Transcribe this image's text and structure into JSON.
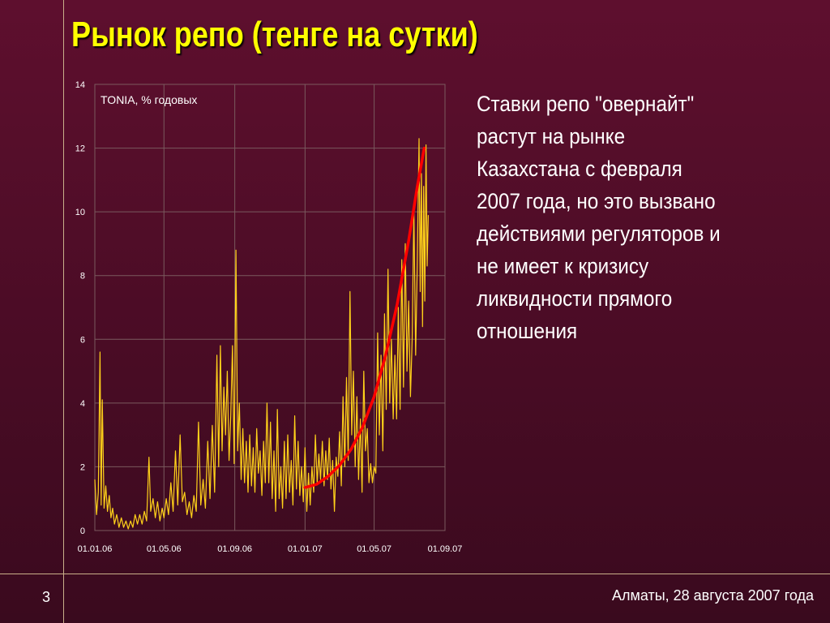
{
  "slide": {
    "title": "Рынок репо (тенге на сутки)",
    "body_lines": [
      "Ставки репо \"овернайт\"",
      "растут на рынке",
      "Казахстана с февраля",
      "2007 года, но это вызвано",
      "действиями регуляторов и",
      "не имеет к кризису",
      "ликвидности прямого",
      "отношения"
    ],
    "page_number": "3",
    "footer": "Алматы, 28 августа 2007 года"
  },
  "colors": {
    "background": "#5e0f2e",
    "title": "#ffff00",
    "series": "#ffd21a",
    "trend": "#ff0000",
    "grid": "#7a5a5e",
    "axis": "#c9b08a"
  },
  "chart_data": {
    "type": "line",
    "title": "",
    "series_label": "TONIA, % годовых",
    "ylim": [
      0,
      14
    ],
    "yticks": [
      "0",
      "2",
      "4",
      "6",
      "8",
      "10",
      "12",
      "14"
    ],
    "xticks": [
      "01.01.06",
      "01.05.06",
      "01.09.06",
      "01.01.07",
      "01.05.07",
      "01.09.07"
    ],
    "grid": true,
    "series": [
      {
        "name": "TONIA, % годовых",
        "points": [
          [
            "01.01.06",
            1.6
          ],
          [
            "04.01.06",
            0.5
          ],
          [
            "07.01.06",
            1.2
          ],
          [
            "10.01.06",
            5.6
          ],
          [
            "12.01.06",
            0.8
          ],
          [
            "14.01.06",
            4.1
          ],
          [
            "17.01.06",
            0.7
          ],
          [
            "20.01.06",
            1.4
          ],
          [
            "23.01.06",
            0.6
          ],
          [
            "26.01.06",
            1.1
          ],
          [
            "29.01.06",
            0.4
          ],
          [
            "01.02.06",
            0.7
          ],
          [
            "04.02.06",
            0.2
          ],
          [
            "08.02.06",
            0.5
          ],
          [
            "12.02.06",
            0.1
          ],
          [
            "16.02.06",
            0.4
          ],
          [
            "20.02.06",
            0.1
          ],
          [
            "24.02.06",
            0.3
          ],
          [
            "28.02.06",
            0.05
          ],
          [
            "04.03.06",
            0.3
          ],
          [
            "08.03.06",
            0.1
          ],
          [
            "12.03.06",
            0.5
          ],
          [
            "16.03.06",
            0.2
          ],
          [
            "20.03.06",
            0.5
          ],
          [
            "24.03.06",
            0.2
          ],
          [
            "28.03.06",
            0.6
          ],
          [
            "01.04.06",
            0.3
          ],
          [
            "05.04.06",
            2.3
          ],
          [
            "08.04.06",
            0.6
          ],
          [
            "12.04.06",
            1.0
          ],
          [
            "16.04.06",
            0.4
          ],
          [
            "20.04.06",
            0.9
          ],
          [
            "24.04.06",
            0.3
          ],
          [
            "28.04.06",
            0.7
          ],
          [
            "01.05.06",
            0.4
          ],
          [
            "05.05.06",
            1.0
          ],
          [
            "09.05.06",
            0.5
          ],
          [
            "13.05.06",
            1.5
          ],
          [
            "17.05.06",
            0.6
          ],
          [
            "21.05.06",
            2.5
          ],
          [
            "25.05.06",
            0.8
          ],
          [
            "29.05.06",
            3.0
          ],
          [
            "02.06.06",
            0.9
          ],
          [
            "06.06.06",
            1.2
          ],
          [
            "10.06.06",
            0.5
          ],
          [
            "14.06.06",
            0.9
          ],
          [
            "18.06.06",
            0.4
          ],
          [
            "22.06.06",
            1.1
          ],
          [
            "26.06.06",
            0.6
          ],
          [
            "30.06.06",
            3.4
          ],
          [
            "04.07.06",
            0.8
          ],
          [
            "08.07.06",
            1.6
          ],
          [
            "12.07.06",
            0.7
          ],
          [
            "16.07.06",
            2.8
          ],
          [
            "20.07.06",
            1.0
          ],
          [
            "24.07.06",
            3.3
          ],
          [
            "28.07.06",
            1.2
          ],
          [
            "01.08.06",
            5.5
          ],
          [
            "04.08.06",
            2.0
          ],
          [
            "07.08.06",
            5.8
          ],
          [
            "10.08.06",
            2.5
          ],
          [
            "13.08.06",
            4.5
          ],
          [
            "16.08.06",
            3.0
          ],
          [
            "19.08.06",
            5.0
          ],
          [
            "22.08.06",
            2.2
          ],
          [
            "25.08.06",
            3.6
          ],
          [
            "28.08.06",
            5.8
          ],
          [
            "31.08.06",
            2.1
          ],
          [
            "03.09.06",
            8.8
          ],
          [
            "06.09.06",
            2.5
          ],
          [
            "09.09.06",
            4.0
          ],
          [
            "12.09.06",
            1.6
          ],
          [
            "15.09.06",
            3.2
          ],
          [
            "18.09.06",
            1.5
          ],
          [
            "21.09.06",
            2.8
          ],
          [
            "24.09.06",
            1.2
          ],
          [
            "27.09.06",
            3.0
          ],
          [
            "30.09.06",
            1.4
          ],
          [
            "03.10.06",
            2.6
          ],
          [
            "06.10.06",
            1.2
          ],
          [
            "09.10.06",
            3.2
          ],
          [
            "12.10.06",
            1.8
          ],
          [
            "15.10.06",
            2.5
          ],
          [
            "18.10.06",
            1.1
          ],
          [
            "21.10.06",
            2.8
          ],
          [
            "24.10.06",
            1.5
          ],
          [
            "27.10.06",
            4.0
          ],
          [
            "30.10.06",
            1.5
          ],
          [
            "02.11.06",
            3.4
          ],
          [
            "05.11.06",
            1.0
          ],
          [
            "08.11.06",
            2.5
          ],
          [
            "11.11.06",
            0.6
          ],
          [
            "14.11.06",
            3.8
          ],
          [
            "17.11.06",
            1.0
          ],
          [
            "20.11.06",
            2.0
          ],
          [
            "23.11.06",
            0.7
          ],
          [
            "26.11.06",
            2.8
          ],
          [
            "29.11.06",
            1.0
          ],
          [
            "02.12.06",
            3.0
          ],
          [
            "05.12.06",
            1.2
          ],
          [
            "08.12.06",
            2.2
          ],
          [
            "11.12.06",
            0.8
          ],
          [
            "14.12.06",
            3.6
          ],
          [
            "17.12.06",
            1.3
          ],
          [
            "20.12.06",
            2.8
          ],
          [
            "23.12.06",
            1.1
          ],
          [
            "26.12.06",
            2.0
          ],
          [
            "29.12.06",
            0.9
          ],
          [
            "01.01.07",
            2.6
          ],
          [
            "04.01.07",
            0.6
          ],
          [
            "07.01.07",
            1.8
          ],
          [
            "10.01.07",
            0.8
          ],
          [
            "13.01.07",
            2.0
          ],
          [
            "16.01.07",
            1.2
          ],
          [
            "19.01.07",
            3.0
          ],
          [
            "22.01.07",
            1.5
          ],
          [
            "25.01.07",
            2.4
          ],
          [
            "28.01.07",
            1.6
          ],
          [
            "31.01.07",
            2.8
          ],
          [
            "03.02.07",
            1.4
          ],
          [
            "06.02.07",
            2.5
          ],
          [
            "09.02.07",
            1.6
          ],
          [
            "12.02.07",
            2.9
          ],
          [
            "15.02.07",
            1.3
          ],
          [
            "18.02.07",
            2.2
          ],
          [
            "21.02.07",
            0.6
          ],
          [
            "24.02.07",
            2.3
          ],
          [
            "27.02.07",
            1.7
          ],
          [
            "02.03.07",
            3.1
          ],
          [
            "05.03.07",
            1.4
          ],
          [
            "08.03.07",
            4.2
          ],
          [
            "11.03.07",
            2.0
          ],
          [
            "14.03.07",
            4.8
          ],
          [
            "17.03.07",
            2.2
          ],
          [
            "20.03.07",
            7.5
          ],
          [
            "23.03.07",
            3.0
          ],
          [
            "26.03.07",
            5.0
          ],
          [
            "29.03.07",
            2.0
          ],
          [
            "01.04.07",
            4.2
          ],
          [
            "04.04.07",
            1.6
          ],
          [
            "07.04.07",
            3.5
          ],
          [
            "10.04.07",
            1.2
          ],
          [
            "13.04.07",
            5.0
          ],
          [
            "16.04.07",
            2.5
          ],
          [
            "19.04.07",
            3.2
          ],
          [
            "22.04.07",
            1.5
          ],
          [
            "25.04.07",
            2.1
          ],
          [
            "28.04.07",
            1.5
          ],
          [
            "01.05.07",
            2.0
          ],
          [
            "04.05.07",
            1.8
          ],
          [
            "07.05.07",
            6.2
          ],
          [
            "10.05.07",
            3.0
          ],
          [
            "13.05.07",
            5.5
          ],
          [
            "16.05.07",
            2.5
          ],
          [
            "19.05.07",
            6.8
          ],
          [
            "22.05.07",
            3.8
          ],
          [
            "25.05.07",
            8.2
          ],
          [
            "28.05.07",
            4.0
          ],
          [
            "31.05.07",
            6.0
          ],
          [
            "03.06.07",
            3.5
          ],
          [
            "06.06.07",
            5.5
          ],
          [
            "09.06.07",
            3.5
          ],
          [
            "12.06.07",
            7.0
          ],
          [
            "15.06.07",
            3.8
          ],
          [
            "18.06.07",
            8.5
          ],
          [
            "21.06.07",
            4.5
          ],
          [
            "24.06.07",
            9.0
          ],
          [
            "27.06.07",
            5.0
          ],
          [
            "30.06.07",
            7.2
          ],
          [
            "03.07.07",
            4.2
          ],
          [
            "06.07.07",
            6.0
          ],
          [
            "09.07.07",
            10.0
          ],
          [
            "12.07.07",
            5.5
          ],
          [
            "15.07.07",
            8.5
          ],
          [
            "18.07.07",
            12.3
          ],
          [
            "20.07.07",
            7.5
          ],
          [
            "22.07.07",
            11.2
          ],
          [
            "24.07.07",
            6.4
          ],
          [
            "26.07.07",
            10.8
          ],
          [
            "28.07.07",
            7.2
          ],
          [
            "30.07.07",
            12.1
          ],
          [
            "01.08.07",
            8.3
          ],
          [
            "03.08.07",
            9.9
          ]
        ]
      },
      {
        "name": "",
        "points": [
          [
            "01.01.07",
            1.35
          ],
          [
            "21.01.07",
            1.45
          ],
          [
            "10.02.07",
            1.7
          ],
          [
            "02.03.07",
            2.05
          ],
          [
            "22.03.07",
            2.55
          ],
          [
            "11.04.07",
            3.25
          ],
          [
            "01.05.07",
            4.2
          ],
          [
            "21.05.07",
            5.5
          ],
          [
            "10.06.07",
            7.1
          ],
          [
            "30.06.07",
            9.1
          ],
          [
            "15.07.07",
            10.8
          ],
          [
            "27.07.07",
            12.0
          ]
        ]
      }
    ]
  }
}
